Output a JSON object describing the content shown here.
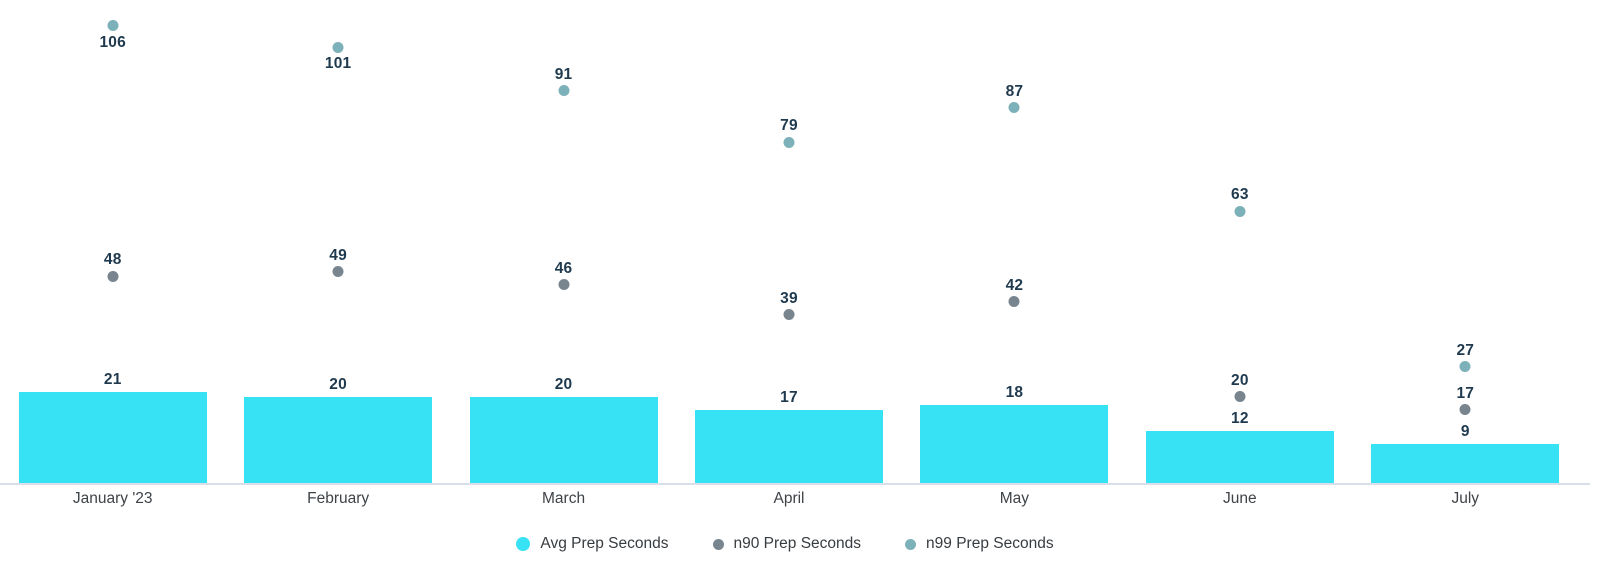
{
  "chart_data": {
    "type": "bar",
    "title": "",
    "xlabel": "",
    "ylabel": "",
    "ylim": [
      0,
      112
    ],
    "grid": false,
    "legend_position": "bottom",
    "categories": [
      "January '23",
      "February",
      "March",
      "April",
      "May",
      "June",
      "July"
    ],
    "series": [
      {
        "key": "avg",
        "name": "Avg Prep Seconds",
        "type": "bar",
        "color": "#36E2F4",
        "values": [
          21,
          20,
          20,
          17,
          18,
          12,
          9
        ],
        "label_positions": [
          "above",
          "above",
          "above",
          "above",
          "above",
          "above",
          "above"
        ]
      },
      {
        "key": "n90",
        "name": "n90 Prep Seconds",
        "type": "scatter",
        "color": "#78858F",
        "values": [
          48,
          49,
          46,
          39,
          42,
          20,
          17
        ],
        "label_positions": [
          "above",
          "above",
          "above",
          "above",
          "above",
          "above",
          "above"
        ]
      },
      {
        "key": "n99",
        "name": "n99 Prep Seconds",
        "type": "scatter",
        "color": "#7DB1BA",
        "values": [
          106,
          101,
          91,
          79,
          87,
          63,
          27
        ],
        "label_positions": [
          "below",
          "below",
          "above",
          "above",
          "above",
          "above",
          "above"
        ]
      }
    ],
    "colors": {
      "value_label": "#1F3A4E",
      "axis_line": "#D9DEE8",
      "axis_text": "#3E4348",
      "legend_text": "#373C41",
      "background": "#FFFFFF"
    }
  }
}
